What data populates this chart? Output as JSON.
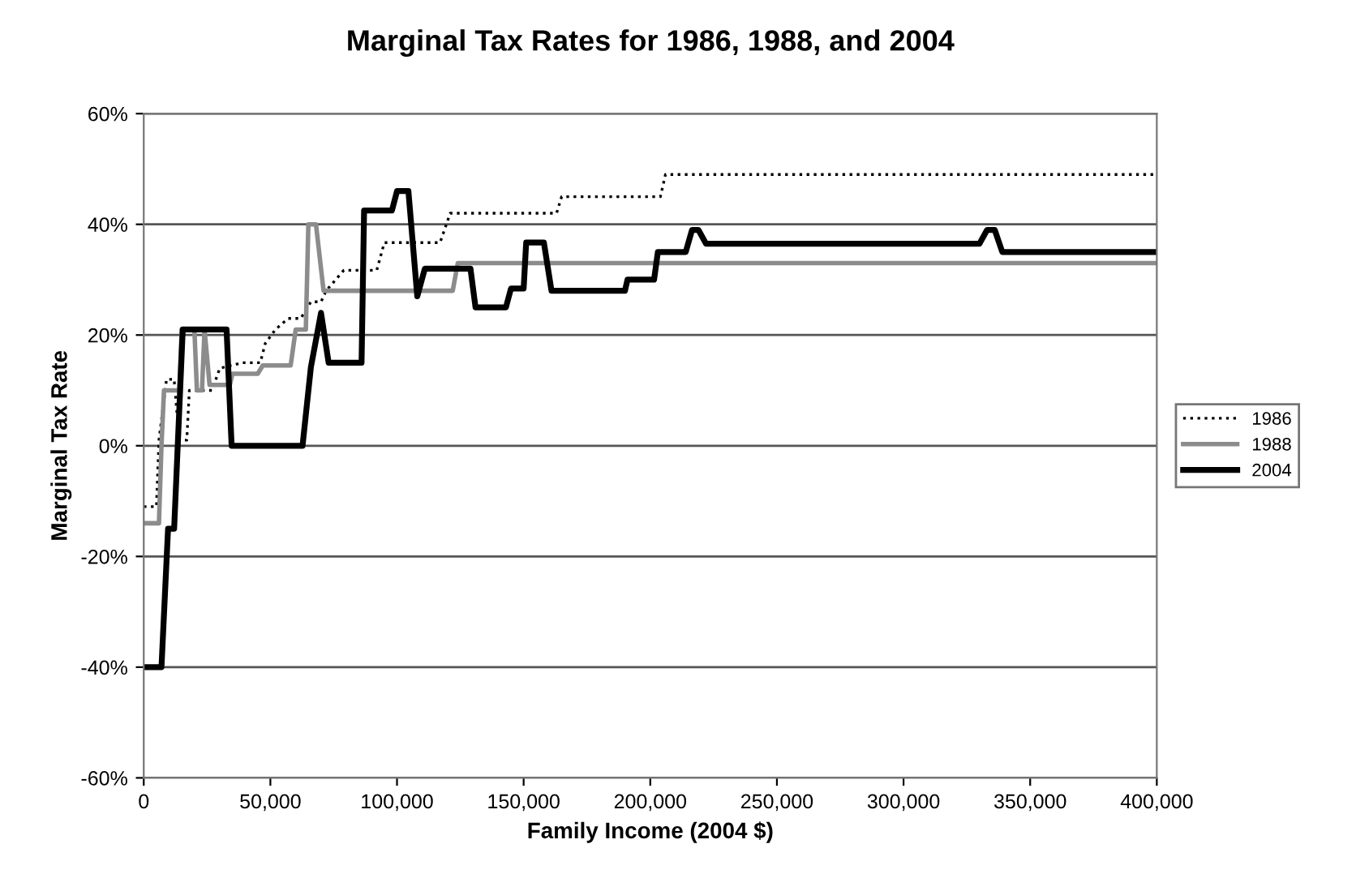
{
  "chart_data": {
    "type": "line",
    "title": "Marginal Tax Rates for 1986, 1988, and 2004",
    "xlabel": "Family Income (2004 $)",
    "ylabel": "Marginal Tax Rate",
    "xlim": [
      0,
      400000
    ],
    "xticks": [
      {
        "value": 0,
        "label": "0"
      },
      {
        "value": 50000,
        "label": "50,000"
      },
      {
        "value": 100000,
        "label": "100,000"
      },
      {
        "value": 150000,
        "label": "150,000"
      },
      {
        "value": 200000,
        "label": "200,000"
      },
      {
        "value": 250000,
        "label": "250,000"
      },
      {
        "value": 300000,
        "label": "300,000"
      },
      {
        "value": 350000,
        "label": "350,000"
      },
      {
        "value": 400000,
        "label": "400,000"
      }
    ],
    "ylim": [
      -60,
      60
    ],
    "yticks": [
      {
        "value": -60,
        "label": "-60%"
      },
      {
        "value": -40,
        "label": "-40%"
      },
      {
        "value": -20,
        "label": "-20%"
      },
      {
        "value": 0,
        "label": "0%"
      },
      {
        "value": 20,
        "label": "20%"
      },
      {
        "value": 40,
        "label": "40%"
      },
      {
        "value": 60,
        "label": "60%"
      }
    ],
    "grid": "y",
    "legend": "right",
    "marker": "none",
    "series": [
      {
        "name": "1986",
        "color": "#000000",
        "line_style": "dotted",
        "x": [
          0,
          5000,
          6000,
          9000,
          12000,
          14000,
          17000,
          18000,
          27000,
          30000,
          39000,
          46000,
          48000,
          52000,
          57000,
          62000,
          66000,
          70000,
          72000,
          79000,
          92000,
          95000,
          117000,
          121000,
          163000,
          165000,
          204000,
          206000,
          400000
        ],
        "values": [
          -11,
          -11,
          1,
          12,
          12,
          1,
          1,
          10,
          10,
          14,
          15,
          15,
          18.5,
          21,
          23,
          23,
          26,
          26,
          28,
          31.7,
          31.7,
          36.7,
          36.7,
          42,
          42,
          45,
          45,
          49,
          49
        ]
      },
      {
        "name": "1988",
        "color": "#8c8c8c",
        "line_style": "solid",
        "x": [
          0,
          6000,
          7000,
          8000,
          14000,
          15000,
          20000,
          21000,
          23000,
          24000,
          26000,
          34000,
          35000,
          45000,
          47000,
          58000,
          60000,
          64000,
          65000,
          68000,
          71000,
          122000,
          124000,
          400000
        ],
        "values": [
          -14,
          -14,
          0,
          10,
          10,
          21,
          21,
          10,
          10,
          21,
          11,
          11,
          13,
          13,
          14.5,
          14.5,
          21,
          21,
          40,
          40,
          28,
          28,
          33,
          33
        ]
      },
      {
        "name": "2004",
        "color": "#000000",
        "line_style": "solid",
        "x": [
          0,
          7000,
          9600,
          12000,
          15400,
          32700,
          34700,
          62700,
          66000,
          70000,
          73000,
          86000,
          87000,
          98000,
          100000,
          104500,
          108000,
          111000,
          129000,
          131000,
          143000,
          145000,
          150000,
          151000,
          158000,
          161000,
          190000,
          191000,
          201500,
          203000,
          214000,
          216500,
          219000,
          222000,
          330000,
          333000,
          336000,
          339000,
          400000
        ],
        "values": [
          -40,
          -40,
          -15,
          -15,
          21,
          21,
          0,
          0,
          14.2,
          24,
          15,
          15,
          42.5,
          42.5,
          46,
          46,
          27,
          32,
          32,
          25,
          25,
          28.4,
          28.4,
          36.7,
          36.7,
          28,
          28,
          30,
          30,
          35,
          35,
          39,
          39,
          36.5,
          36.5,
          39,
          39,
          35,
          35
        ]
      }
    ]
  }
}
